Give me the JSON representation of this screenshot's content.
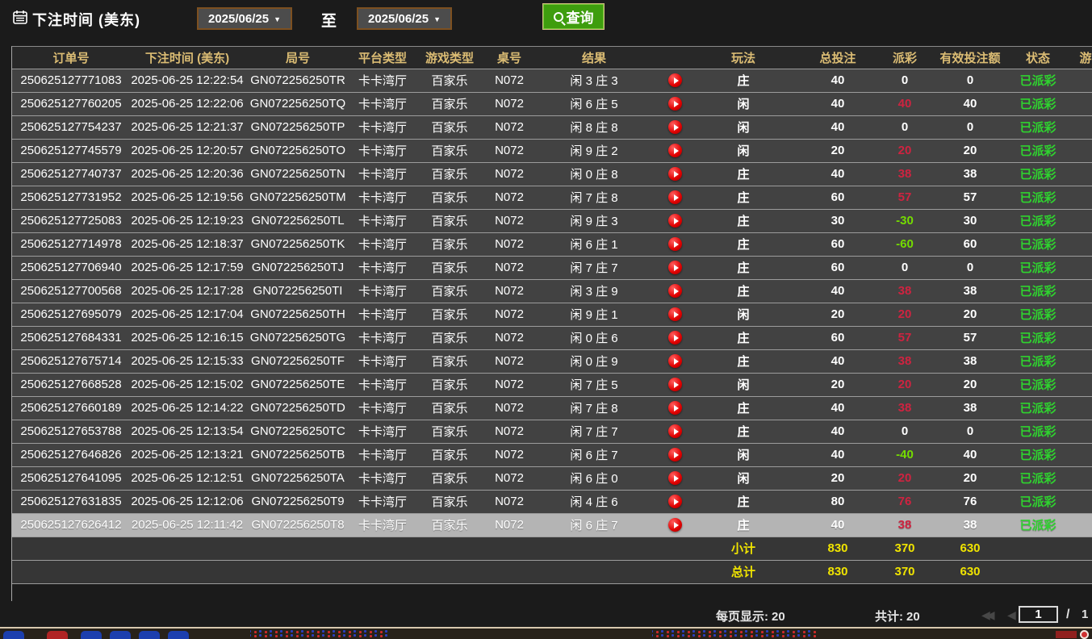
{
  "filter": {
    "title": "下注时间 (美东)",
    "date_from": "2025/06/25",
    "date_to": "2025/06/25",
    "to_label": "至",
    "query_label": "查询"
  },
  "icons": {
    "caret": "▼",
    "first_page": "◀◀",
    "prev_page": "◀"
  },
  "table": {
    "headers": [
      "订单号",
      "下注时间 (美东)",
      "局号",
      "平台类型",
      "游戏类型",
      "桌号",
      "结果",
      "",
      "玩法",
      "总投注",
      "派彩",
      "有效投注额",
      "状态",
      "游"
    ],
    "rows": [
      [
        "250625127771083",
        "2025-06-25 12:22:54",
        "GN072256250TR",
        "卡卡湾厅",
        "百家乐",
        "N072",
        "闲 3 庄 3",
        "庄",
        "40",
        "0",
        "0",
        "已派彩"
      ],
      [
        "250625127760205",
        "2025-06-25 12:22:06",
        "GN072256250TQ",
        "卡卡湾厅",
        "百家乐",
        "N072",
        "闲 6 庄 5",
        "闲",
        "40",
        "40",
        "40",
        "已派彩"
      ],
      [
        "250625127754237",
        "2025-06-25 12:21:37",
        "GN072256250TP",
        "卡卡湾厅",
        "百家乐",
        "N072",
        "闲 8 庄 8",
        "闲",
        "40",
        "0",
        "0",
        "已派彩"
      ],
      [
        "250625127745579",
        "2025-06-25 12:20:57",
        "GN072256250TO",
        "卡卡湾厅",
        "百家乐",
        "N072",
        "闲 9 庄 2",
        "闲",
        "20",
        "20",
        "20",
        "已派彩"
      ],
      [
        "250625127740737",
        "2025-06-25 12:20:36",
        "GN072256250TN",
        "卡卡湾厅",
        "百家乐",
        "N072",
        "闲 0 庄 8",
        "庄",
        "40",
        "38",
        "38",
        "已派彩"
      ],
      [
        "250625127731952",
        "2025-06-25 12:19:56",
        "GN072256250TM",
        "卡卡湾厅",
        "百家乐",
        "N072",
        "闲 7 庄 8",
        "庄",
        "60",
        "57",
        "57",
        "已派彩"
      ],
      [
        "250625127725083",
        "2025-06-25 12:19:23",
        "GN072256250TL",
        "卡卡湾厅",
        "百家乐",
        "N072",
        "闲 9 庄 3",
        "庄",
        "30",
        "-30",
        "30",
        "已派彩"
      ],
      [
        "250625127714978",
        "2025-06-25 12:18:37",
        "GN072256250TK",
        "卡卡湾厅",
        "百家乐",
        "N072",
        "闲 6 庄 1",
        "庄",
        "60",
        "-60",
        "60",
        "已派彩"
      ],
      [
        "250625127706940",
        "2025-06-25 12:17:59",
        "GN072256250TJ",
        "卡卡湾厅",
        "百家乐",
        "N072",
        "闲 7 庄 7",
        "庄",
        "60",
        "0",
        "0",
        "已派彩"
      ],
      [
        "250625127700568",
        "2025-06-25 12:17:28",
        "GN072256250TI",
        "卡卡湾厅",
        "百家乐",
        "N072",
        "闲 3 庄 9",
        "庄",
        "40",
        "38",
        "38",
        "已派彩"
      ],
      [
        "250625127695079",
        "2025-06-25 12:17:04",
        "GN072256250TH",
        "卡卡湾厅",
        "百家乐",
        "N072",
        "闲 9 庄 1",
        "闲",
        "20",
        "20",
        "20",
        "已派彩"
      ],
      [
        "250625127684331",
        "2025-06-25 12:16:15",
        "GN072256250TG",
        "卡卡湾厅",
        "百家乐",
        "N072",
        "闲 0 庄 6",
        "庄",
        "60",
        "57",
        "57",
        "已派彩"
      ],
      [
        "250625127675714",
        "2025-06-25 12:15:33",
        "GN072256250TF",
        "卡卡湾厅",
        "百家乐",
        "N072",
        "闲 0 庄 9",
        "庄",
        "40",
        "38",
        "38",
        "已派彩"
      ],
      [
        "250625127668528",
        "2025-06-25 12:15:02",
        "GN072256250TE",
        "卡卡湾厅",
        "百家乐",
        "N072",
        "闲 7 庄 5",
        "闲",
        "20",
        "20",
        "20",
        "已派彩"
      ],
      [
        "250625127660189",
        "2025-06-25 12:14:22",
        "GN072256250TD",
        "卡卡湾厅",
        "百家乐",
        "N072",
        "闲 7 庄 8",
        "庄",
        "40",
        "38",
        "38",
        "已派彩"
      ],
      [
        "250625127653788",
        "2025-06-25 12:13:54",
        "GN072256250TC",
        "卡卡湾厅",
        "百家乐",
        "N072",
        "闲 7 庄 7",
        "庄",
        "40",
        "0",
        "0",
        "已派彩"
      ],
      [
        "250625127646826",
        "2025-06-25 12:13:21",
        "GN072256250TB",
        "卡卡湾厅",
        "百家乐",
        "N072",
        "闲 6 庄 7",
        "闲",
        "40",
        "-40",
        "40",
        "已派彩"
      ],
      [
        "250625127641095",
        "2025-06-25 12:12:51",
        "GN072256250TA",
        "卡卡湾厅",
        "百家乐",
        "N072",
        "闲 6 庄 0",
        "闲",
        "20",
        "20",
        "20",
        "已派彩"
      ],
      [
        "250625127631835",
        "2025-06-25 12:12:06",
        "GN072256250T9",
        "卡卡湾厅",
        "百家乐",
        "N072",
        "闲 4 庄 6",
        "庄",
        "80",
        "76",
        "76",
        "已派彩"
      ],
      [
        "250625127626412",
        "2025-06-25 12:11:42",
        "GN072256250T8",
        "卡卡湾厅",
        "百家乐",
        "N072",
        "闲 6 庄 7",
        "庄",
        "40",
        "38",
        "38",
        "已派彩"
      ]
    ],
    "selected_row_index": 19,
    "subtotal": {
      "label": "小计",
      "total_bet": "830",
      "payout": "370",
      "valid_bet": "630"
    },
    "grand_total": {
      "label": "总计",
      "total_bet": "830",
      "payout": "370",
      "valid_bet": "630"
    }
  },
  "pagination": {
    "per_page_label": "每页显示:",
    "per_page_value": "20",
    "total_label": "共计:",
    "total_value": "20",
    "current_page": "1",
    "separator": "/",
    "total_pages": "1"
  },
  "colors": {
    "header_text": "#dcbd74",
    "payout_positive": "#cf2340",
    "payout_negative": "#74dc00",
    "status_paid": "#2fd32f",
    "totals_text": "#f0e400",
    "query_button": "#3e9d0e",
    "selected_row": "#b4b4b4"
  }
}
